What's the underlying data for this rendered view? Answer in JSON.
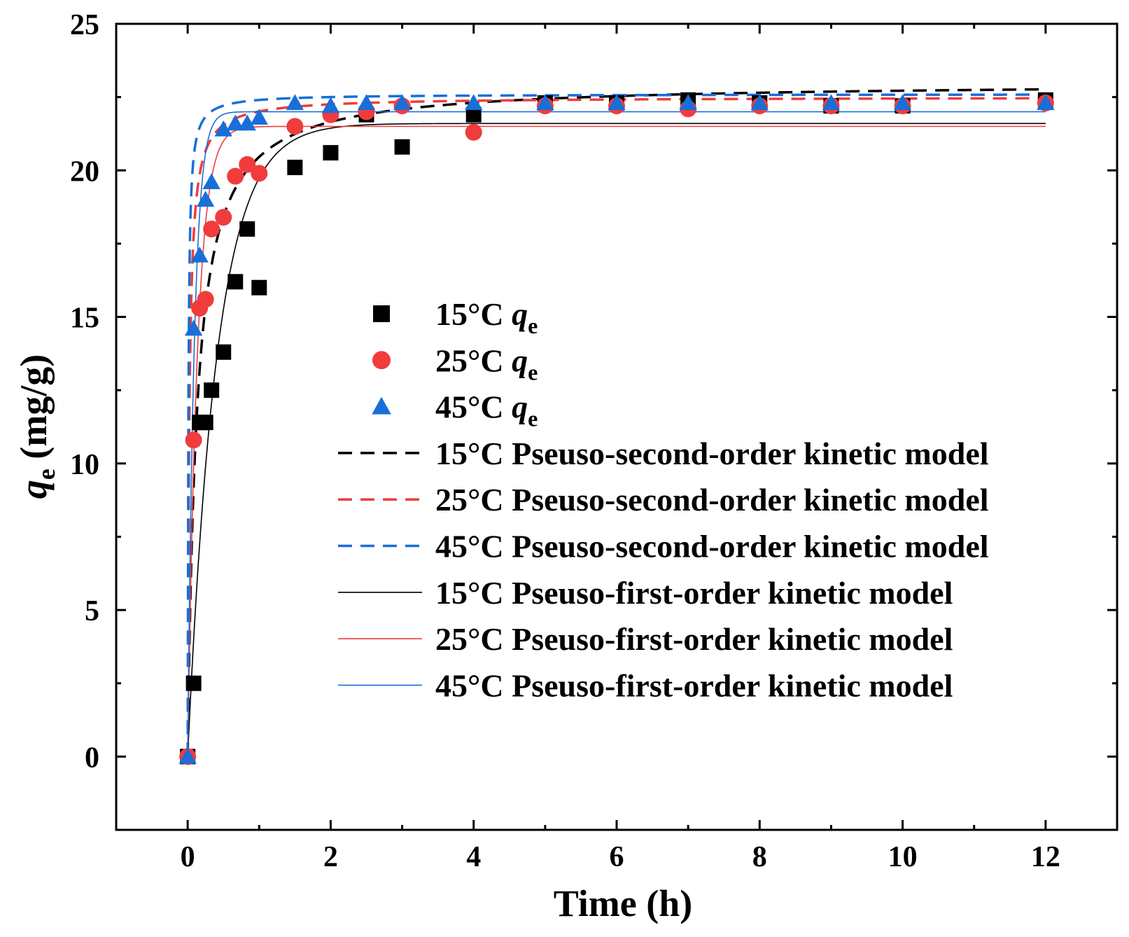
{
  "chart_data": {
    "type": "scatter",
    "xlabel": "Time (h)",
    "ylabel": {
      "main": "q",
      "sub": "e",
      "unit": " (mg/g)"
    },
    "xlim": [
      -1,
      13
    ],
    "ylim": [
      -2.5,
      25
    ],
    "xticks": [
      0,
      2,
      4,
      6,
      8,
      10,
      12
    ],
    "yticks": [
      0,
      5,
      10,
      15,
      20,
      25
    ],
    "series": [
      {
        "name": "15°C q_e",
        "kind": "points",
        "marker": "square",
        "color": "#000000",
        "label": {
          "main": "15°C ",
          "var": "q",
          "sub": "e"
        },
        "x": [
          0,
          0.083,
          0.167,
          0.25,
          0.333,
          0.5,
          0.667,
          0.833,
          1,
          1.5,
          2,
          2.5,
          3,
          4,
          5,
          6,
          7,
          8,
          9,
          10,
          12
        ],
        "y": [
          0,
          2.5,
          11.4,
          11.4,
          12.5,
          13.8,
          16.2,
          18.0,
          16.0,
          20.1,
          20.6,
          21.9,
          20.8,
          21.9,
          22.3,
          22.3,
          22.4,
          22.3,
          22.2,
          22.2,
          22.4
        ]
      },
      {
        "name": "25°C q_e",
        "kind": "points",
        "marker": "circle",
        "color": "#f03c3c",
        "label": {
          "main": "25°C ",
          "var": "q",
          "sub": "e"
        },
        "x": [
          0,
          0.083,
          0.167,
          0.25,
          0.333,
          0.5,
          0.667,
          0.833,
          1,
          1.5,
          2,
          2.5,
          3,
          4,
          5,
          6,
          7,
          8,
          9,
          10,
          12
        ],
        "y": [
          0,
          10.8,
          15.3,
          15.6,
          18.0,
          18.4,
          19.8,
          20.2,
          19.9,
          21.5,
          21.9,
          22.0,
          22.2,
          21.3,
          22.2,
          22.2,
          22.1,
          22.2,
          22.2,
          22.2,
          22.3
        ]
      },
      {
        "name": "45°C q_e",
        "kind": "points",
        "marker": "triangle",
        "color": "#1a6ed8",
        "label": {
          "main": "45°C ",
          "var": "q",
          "sub": "e"
        },
        "x": [
          0,
          0.083,
          0.167,
          0.25,
          0.333,
          0.5,
          0.667,
          0.833,
          1,
          1.5,
          2,
          2.5,
          3,
          4,
          5,
          6,
          7,
          8,
          9,
          10,
          12
        ],
        "y": [
          0,
          14.6,
          17.1,
          19.0,
          19.6,
          21.4,
          21.6,
          21.6,
          21.8,
          22.3,
          22.2,
          22.3,
          22.3,
          22.3,
          22.3,
          22.3,
          22.3,
          22.3,
          22.3,
          22.3,
          22.3
        ]
      },
      {
        "name": "15°C Pseuso-second-order kinetic model",
        "kind": "curve",
        "model": "pso",
        "qe": 23.0,
        "k": 0.35,
        "dash": "dashed",
        "color": "#000000",
        "label": {
          "main": "15°C Pseuso-second-order kinetic model"
        }
      },
      {
        "name": "25°C Pseuso-second-order kinetic model",
        "kind": "curve",
        "model": "pso",
        "qe": 22.5,
        "k": 2.0,
        "dash": "dashed",
        "color": "#f03c3c",
        "label": {
          "main": "25°C Pseuso-second-order kinetic model"
        }
      },
      {
        "name": "45°C Pseuso-second-order kinetic model",
        "kind": "curve",
        "model": "pso",
        "qe": 22.6,
        "k": 5.0,
        "dash": "dashed",
        "color": "#1a6ed8",
        "label": {
          "main": "45°C Pseuso-second-order kinetic model"
        }
      },
      {
        "name": "15°C Pseuso-first-order kinetic model",
        "kind": "curve",
        "model": "pfo",
        "qe": 21.6,
        "k": 2.45,
        "dash": "solid",
        "color": "#000000",
        "label": {
          "main": "15°C Pseuso-first-order kinetic model"
        }
      },
      {
        "name": "25°C Pseuso-first-order kinetic model",
        "kind": "curve",
        "model": "pfo",
        "qe": 21.5,
        "k": 7.5,
        "dash": "solid",
        "color": "#f03c3c",
        "label": {
          "main": "25°C Pseuso-first-order kinetic model"
        }
      },
      {
        "name": "45°C Pseuso-first-order kinetic model",
        "kind": "curve",
        "model": "pfo",
        "qe": 22.0,
        "k": 11.0,
        "dash": "solid",
        "color": "#1a6ed8",
        "label": {
          "main": "45°C Pseuso-first-order kinetic model"
        }
      }
    ],
    "legend": {
      "position": "right-middle"
    }
  }
}
